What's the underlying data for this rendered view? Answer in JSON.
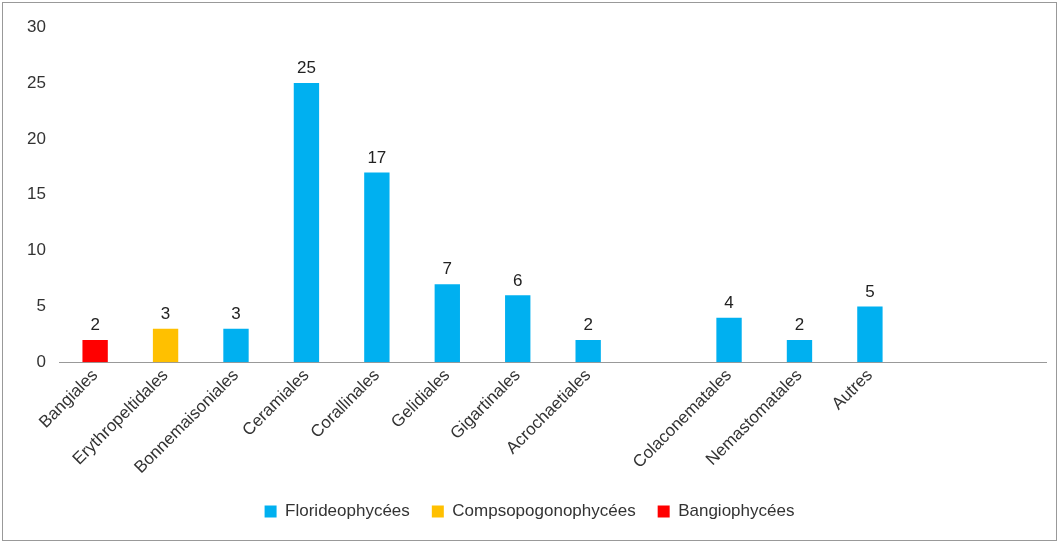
{
  "chart_data": {
    "type": "bar",
    "categories": [
      "Bangiales",
      "Erythropeltidales",
      "Bonnemaisoniales",
      "Ceramiales",
      "Corallinales",
      "Gelidiales",
      "Gigartinales",
      "Acrochaetiales",
      null,
      "Colaconematales",
      "Nemastomatales",
      "Autres",
      null,
      null
    ],
    "series": [
      {
        "name": "Florideophycées",
        "color": "#00b0f0",
        "values": [
          null,
          null,
          3,
          25,
          17,
          7,
          6,
          2,
          null,
          4,
          2,
          5,
          null,
          null
        ]
      },
      {
        "name": "Compsopogonophycées",
        "color": "#ffc000",
        "values": [
          null,
          3,
          null,
          null,
          null,
          null,
          null,
          null,
          null,
          null,
          null,
          null,
          null,
          null
        ]
      },
      {
        "name": "Bangiophycées",
        "color": "#ff0000",
        "values": [
          2,
          null,
          null,
          null,
          null,
          null,
          null,
          null,
          null,
          null,
          null,
          null,
          null,
          null
        ]
      }
    ],
    "ylim": [
      0,
      30
    ],
    "yticks": [
      0,
      5,
      10,
      15,
      20,
      25,
      30
    ],
    "grid": false,
    "legend": "bottom",
    "data_labels": true
  }
}
